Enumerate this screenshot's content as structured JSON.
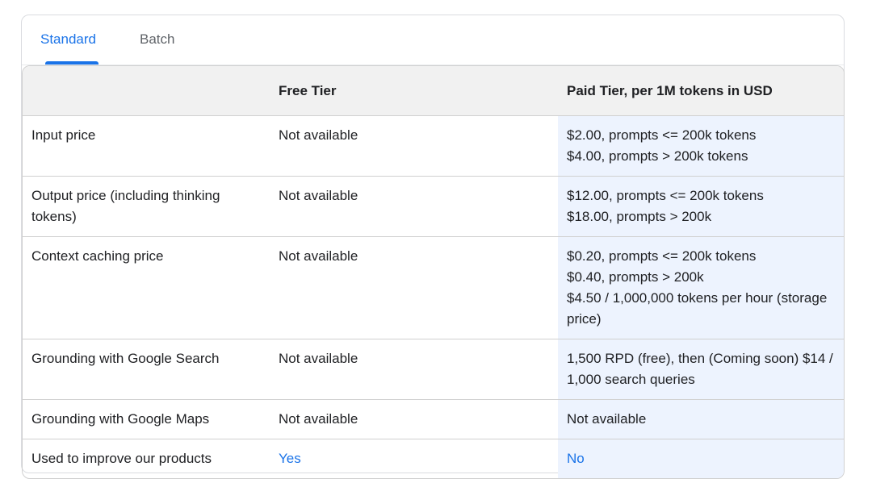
{
  "tabs": [
    {
      "label": "Standard",
      "active": true
    },
    {
      "label": "Batch",
      "active": false
    }
  ],
  "table": {
    "headers": [
      "",
      "Free Tier",
      "Paid Tier, per 1M tokens in USD"
    ],
    "rows": [
      {
        "label": "Input price",
        "free": [
          "Not available"
        ],
        "paid": [
          "$2.00, prompts <= 200k tokens",
          "$4.00, prompts > 200k tokens"
        ]
      },
      {
        "label": "Output price (including thinking tokens)",
        "free": [
          "Not available"
        ],
        "paid": [
          "$12.00, prompts <= 200k tokens",
          "$18.00, prompts > 200k"
        ]
      },
      {
        "label": "Context caching price",
        "free": [
          "Not available"
        ],
        "paid": [
          "$0.20, prompts <= 200k tokens",
          "$0.40, prompts > 200k",
          "$4.50 / 1,000,000 tokens per hour (storage price)"
        ]
      },
      {
        "label": "Grounding with Google Search",
        "free": [
          "Not available"
        ],
        "paid": [
          "1,500 RPD (free), then (Coming soon) $14 / 1,000 search queries"
        ]
      },
      {
        "label": "Grounding with Google Maps",
        "free": [
          "Not available"
        ],
        "paid": [
          "Not available"
        ]
      },
      {
        "label": "Used to improve our products",
        "free": [
          "Yes"
        ],
        "paid": [
          "No"
        ],
        "link": true
      }
    ]
  },
  "colors": {
    "accent": "#1a73e8",
    "paid_column_bg": "#edf3fe",
    "header_bg": "#f1f1f1"
  }
}
